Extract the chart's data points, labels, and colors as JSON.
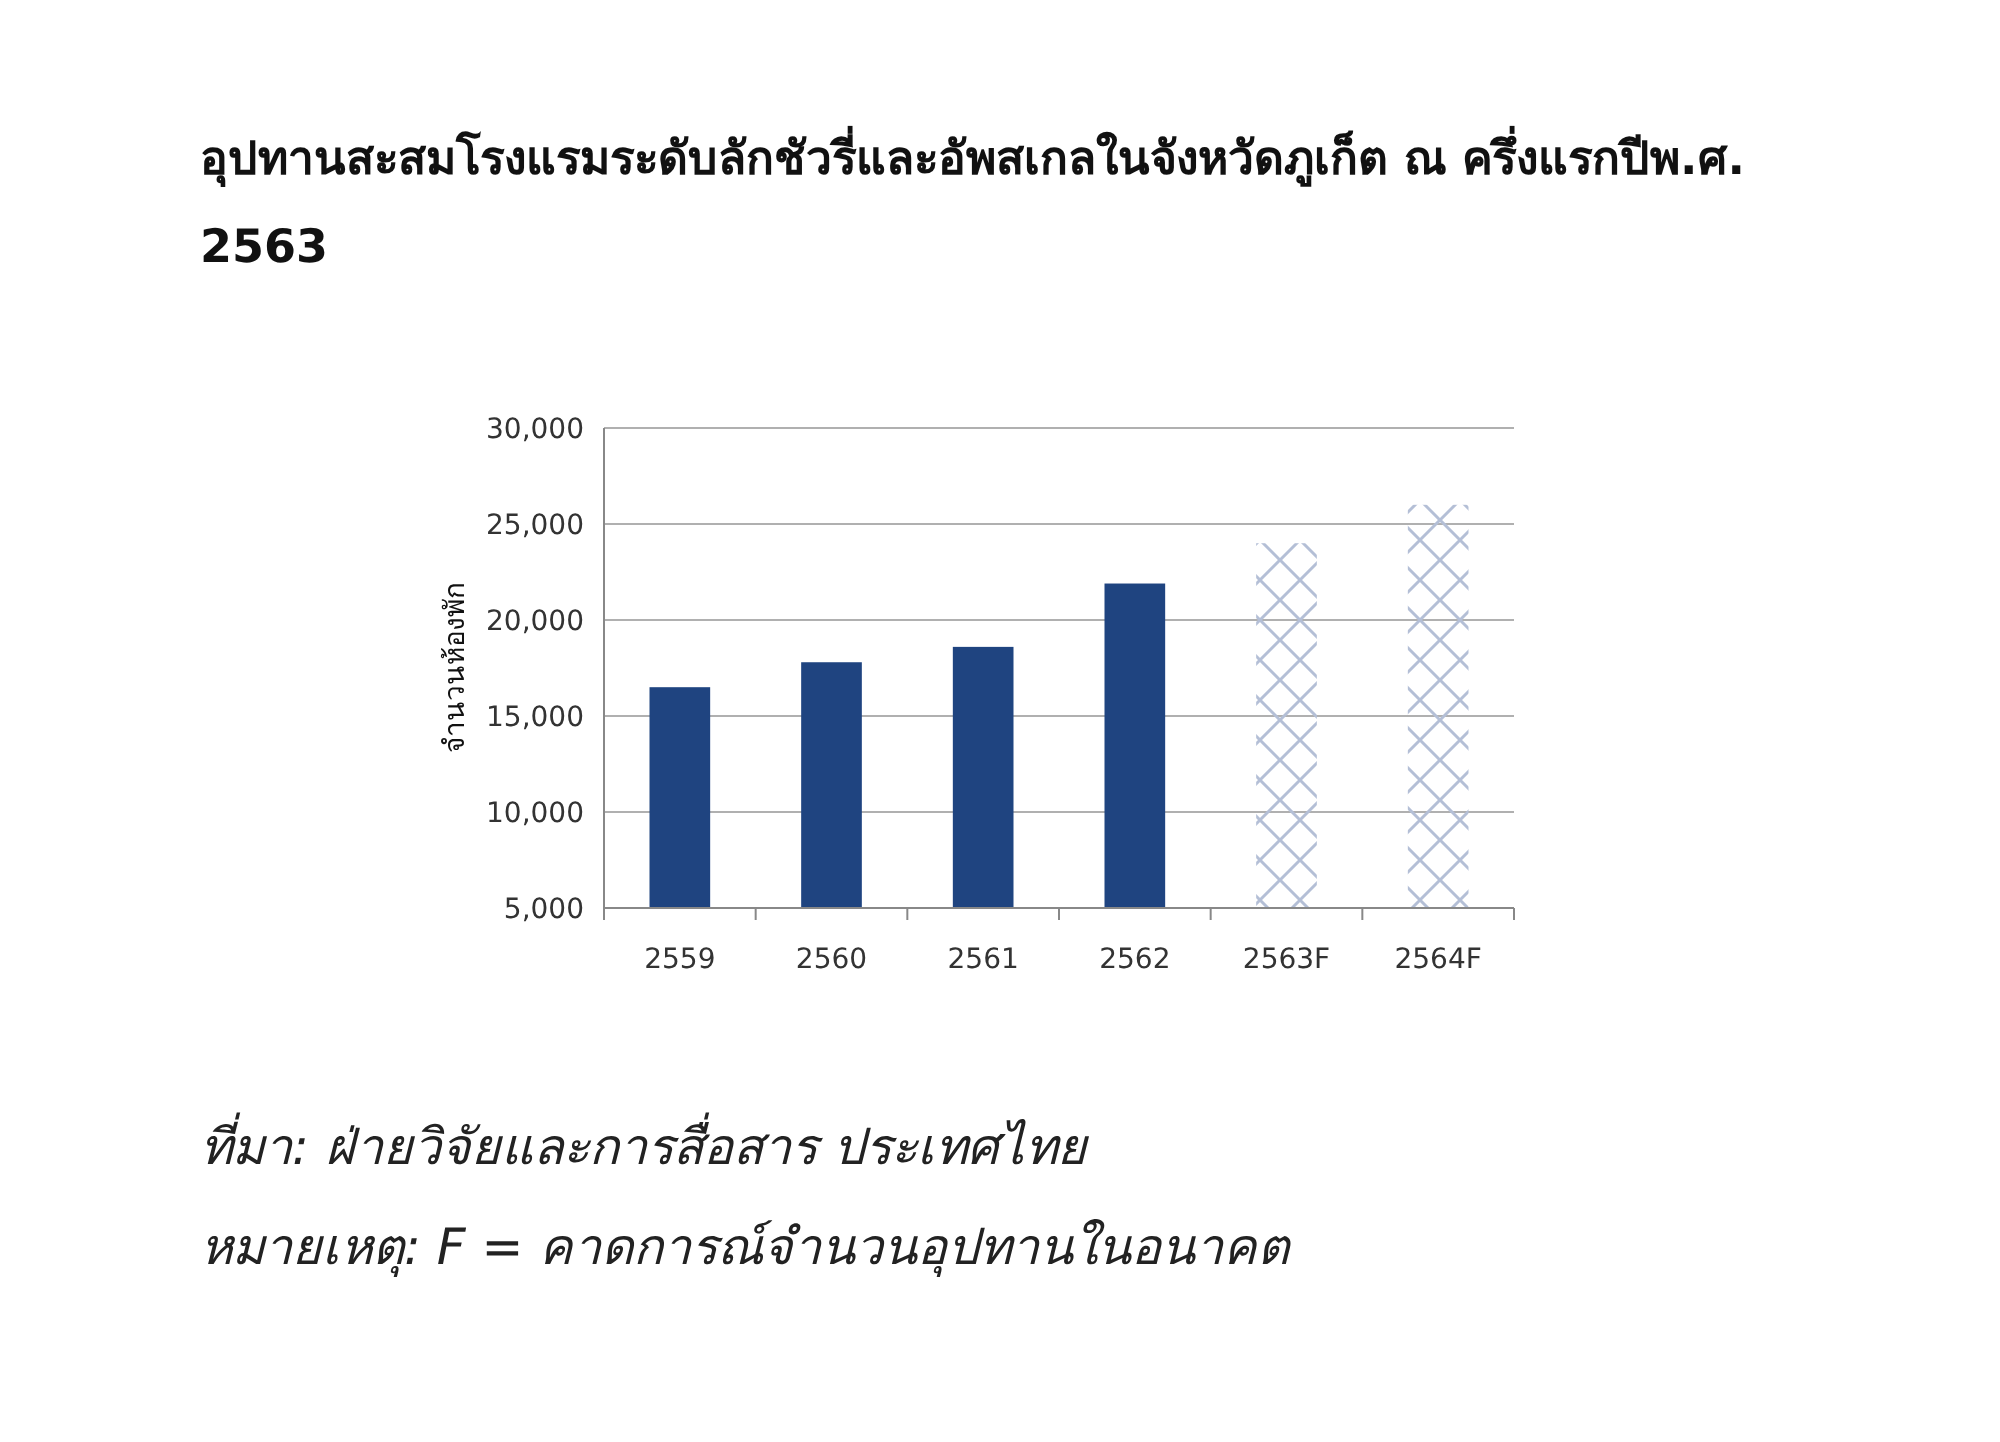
{
  "chart_data": {
    "type": "bar",
    "title": "อุปทานสะสมโรงแรมระดับลักชัวรี่และอัพสเกลในจังหวัดภูเก็ต ณ ครึ่งแรกปีพ.ศ. 2563",
    "ylabel": "จำนวนห้องพัก",
    "categories": [
      "2559",
      "2560",
      "2561",
      "2562",
      "2563F",
      "2564F"
    ],
    "series": [
      {
        "color": "#1f4480",
        "values": [
          16500,
          17800,
          18600,
          21900,
          null,
          null
        ]
      },
      {
        "color": "#b4bfd6",
        "values": [
          null,
          null,
          null,
          null,
          24000,
          26000
        ]
      }
    ],
    "ylim": [
      5000,
      30000
    ],
    "yticks": [
      {
        "value": 5000,
        "label": "5,000"
      },
      {
        "value": 10000,
        "label": "10,000"
      },
      {
        "value": 15000,
        "label": "15,000"
      },
      {
        "value": 20000,
        "label": "20,000"
      },
      {
        "value": 25000,
        "label": "25,000"
      },
      {
        "value": 30000,
        "label": "30,000"
      }
    ],
    "grid": "y",
    "annotations": [
      "ที่มา: ฝ่ายวิจัยและการสื่อสาร ประเทศไทย",
      "หมายเหตุ: F = คาดการณ์จำนวนอุปทานในอนาคต"
    ]
  }
}
